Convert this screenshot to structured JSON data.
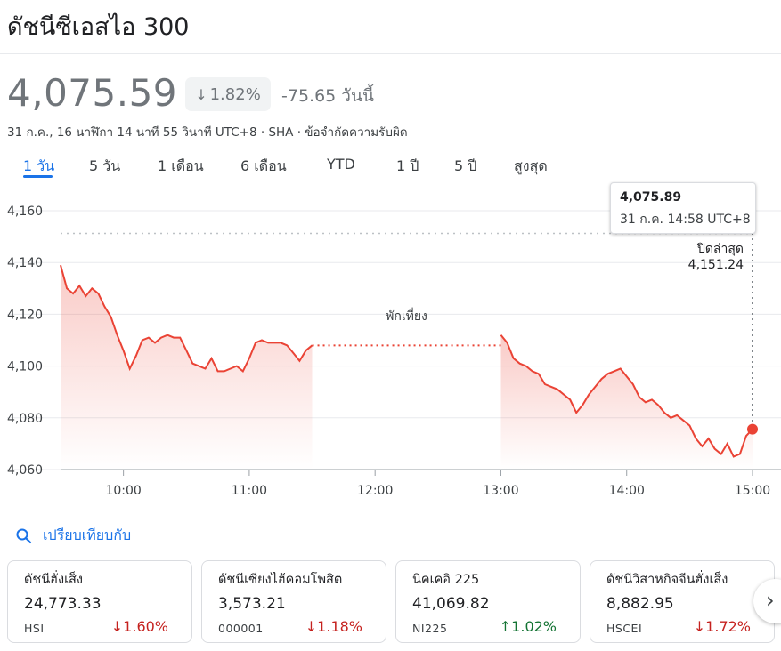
{
  "header": {
    "title": "ดัชนีซีเอสไอ 300"
  },
  "quote": {
    "price": "4,075.59",
    "change_pct": "1.82%",
    "change_abs": "-75.65 วันนี้",
    "meta": "31 ก.ค., 16 นาฬิกา 14 นาที 55 วินาที UTC+8 · SHA · ข้อจำกัดความรับผิด"
  },
  "tabs": [
    {
      "label": "1 วัน",
      "active": true
    },
    {
      "label": "5 วัน"
    },
    {
      "label": "1 เดือน"
    },
    {
      "label": "6 เดือน"
    },
    {
      "label": "YTD"
    },
    {
      "label": "1 ปี"
    },
    {
      "label": "5 ปี"
    },
    {
      "label": "สูงสุด"
    }
  ],
  "tooltip": {
    "value": "4,075.89",
    "time": "31 ก.ค. 14:58 UTC+8"
  },
  "prev_close": {
    "label": "ปิดล่าสุด",
    "value": "4,151.24"
  },
  "break_label": "พักเที่ยง",
  "compare": {
    "label": "เปรียบเทียบกับ"
  },
  "colors": {
    "down": "#c5221f",
    "up": "#137333",
    "accent": "#1a73e8",
    "line": "#ea4335"
  },
  "chart_data": {
    "type": "line",
    "xlabel": "",
    "ylabel": "",
    "y_ticks": [
      "4,160",
      "4,140",
      "4,120",
      "4,100",
      "4,080",
      "4,060"
    ],
    "y_tick_values": [
      4160,
      4140,
      4120,
      4100,
      4080,
      4060
    ],
    "x_ticks": [
      "10:00",
      "11:00",
      "12:00",
      "13:00",
      "14:00",
      "15:00"
    ],
    "ylim": [
      4060,
      4160
    ],
    "xlim": [
      "09:30",
      "15:00"
    ],
    "previous_close": 4151.24,
    "lunch_break": [
      "11:30",
      "13:00"
    ],
    "grid": true,
    "series": [
      {
        "values": [
          [
            "09:30",
            4139
          ],
          [
            "09:33",
            4130
          ],
          [
            "09:36",
            4128
          ],
          [
            "09:39",
            4131
          ],
          [
            "09:42",
            4127
          ],
          [
            "09:45",
            4130
          ],
          [
            "09:48",
            4128
          ],
          [
            "09:51",
            4123
          ],
          [
            "09:54",
            4119
          ],
          [
            "09:57",
            4112
          ],
          [
            "10:00",
            4106
          ],
          [
            "10:03",
            4099
          ],
          [
            "10:06",
            4104
          ],
          [
            "10:09",
            4110
          ],
          [
            "10:12",
            4111
          ],
          [
            "10:15",
            4109
          ],
          [
            "10:18",
            4111
          ],
          [
            "10:21",
            4112
          ],
          [
            "10:24",
            4111
          ],
          [
            "10:27",
            4111
          ],
          [
            "10:30",
            4106
          ],
          [
            "10:33",
            4101
          ],
          [
            "10:36",
            4100
          ],
          [
            "10:39",
            4099
          ],
          [
            "10:42",
            4103
          ],
          [
            "10:45",
            4098
          ],
          [
            "10:48",
            4098
          ],
          [
            "10:51",
            4099
          ],
          [
            "10:54",
            4100
          ],
          [
            "10:57",
            4098
          ],
          [
            "11:00",
            4103
          ],
          [
            "11:03",
            4109
          ],
          [
            "11:06",
            4110
          ],
          [
            "11:09",
            4109
          ],
          [
            "11:12",
            4109
          ],
          [
            "11:15",
            4109
          ],
          [
            "11:18",
            4108
          ],
          [
            "11:21",
            4105
          ],
          [
            "11:24",
            4102
          ],
          [
            "11:27",
            4106
          ],
          [
            "11:30",
            4108
          ],
          [
            "13:00",
            4112
          ],
          [
            "13:03",
            4109
          ],
          [
            "13:06",
            4103
          ],
          [
            "13:09",
            4101
          ],
          [
            "13:12",
            4100
          ],
          [
            "13:15",
            4098
          ],
          [
            "13:18",
            4097
          ],
          [
            "13:21",
            4093
          ],
          [
            "13:24",
            4092
          ],
          [
            "13:27",
            4091
          ],
          [
            "13:30",
            4089
          ],
          [
            "13:33",
            4087
          ],
          [
            "13:36",
            4082
          ],
          [
            "13:39",
            4085
          ],
          [
            "13:42",
            4089
          ],
          [
            "13:45",
            4092
          ],
          [
            "13:48",
            4095
          ],
          [
            "13:51",
            4097
          ],
          [
            "13:54",
            4098
          ],
          [
            "13:57",
            4099
          ],
          [
            "14:00",
            4096
          ],
          [
            "14:03",
            4093
          ],
          [
            "14:06",
            4088
          ],
          [
            "14:09",
            4086
          ],
          [
            "14:12",
            4087
          ],
          [
            "14:15",
            4085
          ],
          [
            "14:18",
            4082
          ],
          [
            "14:21",
            4080
          ],
          [
            "14:24",
            4081
          ],
          [
            "14:27",
            4079
          ],
          [
            "14:30",
            4077
          ],
          [
            "14:33",
            4072
          ],
          [
            "14:36",
            4069
          ],
          [
            "14:39",
            4072
          ],
          [
            "14:42",
            4068
          ],
          [
            "14:45",
            4066
          ],
          [
            "14:48",
            4070
          ],
          [
            "14:51",
            4065
          ],
          [
            "14:54",
            4066
          ],
          [
            "14:57",
            4073
          ],
          [
            "15:00",
            4075.59
          ]
        ]
      }
    ]
  },
  "related": [
    {
      "name": "ดัชนีฮั่งเส็ง",
      "value": "24,773.33",
      "symbol": "HSI",
      "change": "1.60%",
      "direction": "down"
    },
    {
      "name": "ดัชนีเซียงไฮ้คอมโพสิต",
      "value": "3,573.21",
      "symbol": "000001",
      "change": "1.18%",
      "direction": "down"
    },
    {
      "name": "นิคเคอิ 225",
      "value": "41,069.82",
      "symbol": "NI225",
      "change": "1.02%",
      "direction": "up"
    },
    {
      "name": "ดัชนีวิสาหกิจจีนฮั่งเส็ง",
      "value": "8,882.95",
      "symbol": "HSCEI",
      "change": "1.72%",
      "direction": "down"
    }
  ]
}
